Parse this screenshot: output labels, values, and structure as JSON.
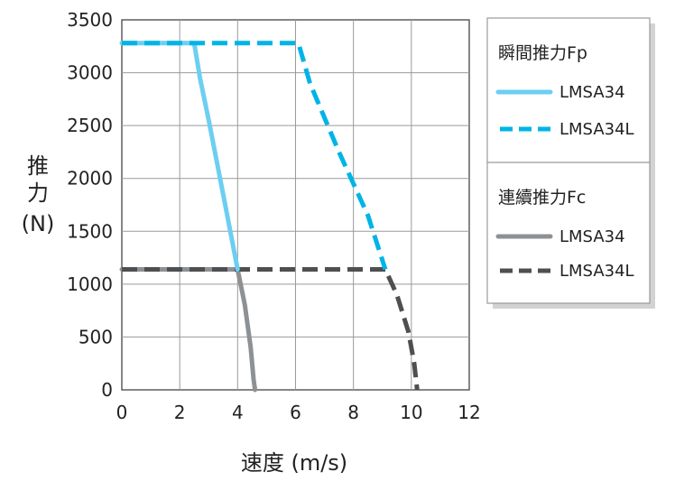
{
  "chart_data": {
    "type": "line",
    "xlabel": "速度 (m/s)",
    "ylabel_lines": [
      "推",
      "力",
      "(N)"
    ],
    "xlim": [
      0,
      12
    ],
    "ylim": [
      0,
      3500
    ],
    "x_ticks": [
      0,
      2,
      4,
      6,
      8,
      10,
      12
    ],
    "y_ticks": [
      0,
      500,
      1000,
      1500,
      2000,
      2500,
      3000,
      3500
    ],
    "grid": true,
    "legend_position": "right",
    "legend": {
      "groups": [
        {
          "title": "瞬間推力Fp",
          "items": [
            "LMSA34",
            "LMSA34L"
          ]
        },
        {
          "title": "連續推力Fc",
          "items": [
            "LMSA34",
            "LMSA34L"
          ]
        }
      ]
    },
    "series": [
      {
        "name": "LMSA34",
        "group": "瞬間推力Fp",
        "style": "solid",
        "color": "#6ccff2",
        "points": [
          [
            0,
            3280
          ],
          [
            2.5,
            3280
          ],
          [
            2.7,
            2950
          ],
          [
            3.0,
            2550
          ],
          [
            3.5,
            1850
          ],
          [
            4.0,
            1140
          ]
        ]
      },
      {
        "name": "LMSA34L",
        "group": "瞬間推力Fp",
        "style": "dashed",
        "color": "#00b4e6",
        "points": [
          [
            0,
            3280
          ],
          [
            6.1,
            3280
          ],
          [
            6.5,
            2900
          ],
          [
            7.5,
            2250
          ],
          [
            8.5,
            1650
          ],
          [
            9.1,
            1140
          ]
        ]
      },
      {
        "name": "LMSA34",
        "group": "連續推力Fc",
        "style": "solid",
        "color": "#8e9193",
        "points": [
          [
            0,
            1140
          ],
          [
            4.0,
            1140
          ],
          [
            4.25,
            800
          ],
          [
            4.45,
            400
          ],
          [
            4.55,
            100
          ],
          [
            4.6,
            0
          ]
        ]
      },
      {
        "name": "LMSA34L",
        "group": "連續推力Fc",
        "style": "dashed",
        "color": "#4d4f51",
        "points": [
          [
            0,
            1140
          ],
          [
            9.1,
            1140
          ],
          [
            9.5,
            900
          ],
          [
            9.9,
            550
          ],
          [
            10.1,
            250
          ],
          [
            10.2,
            0
          ]
        ]
      }
    ]
  }
}
